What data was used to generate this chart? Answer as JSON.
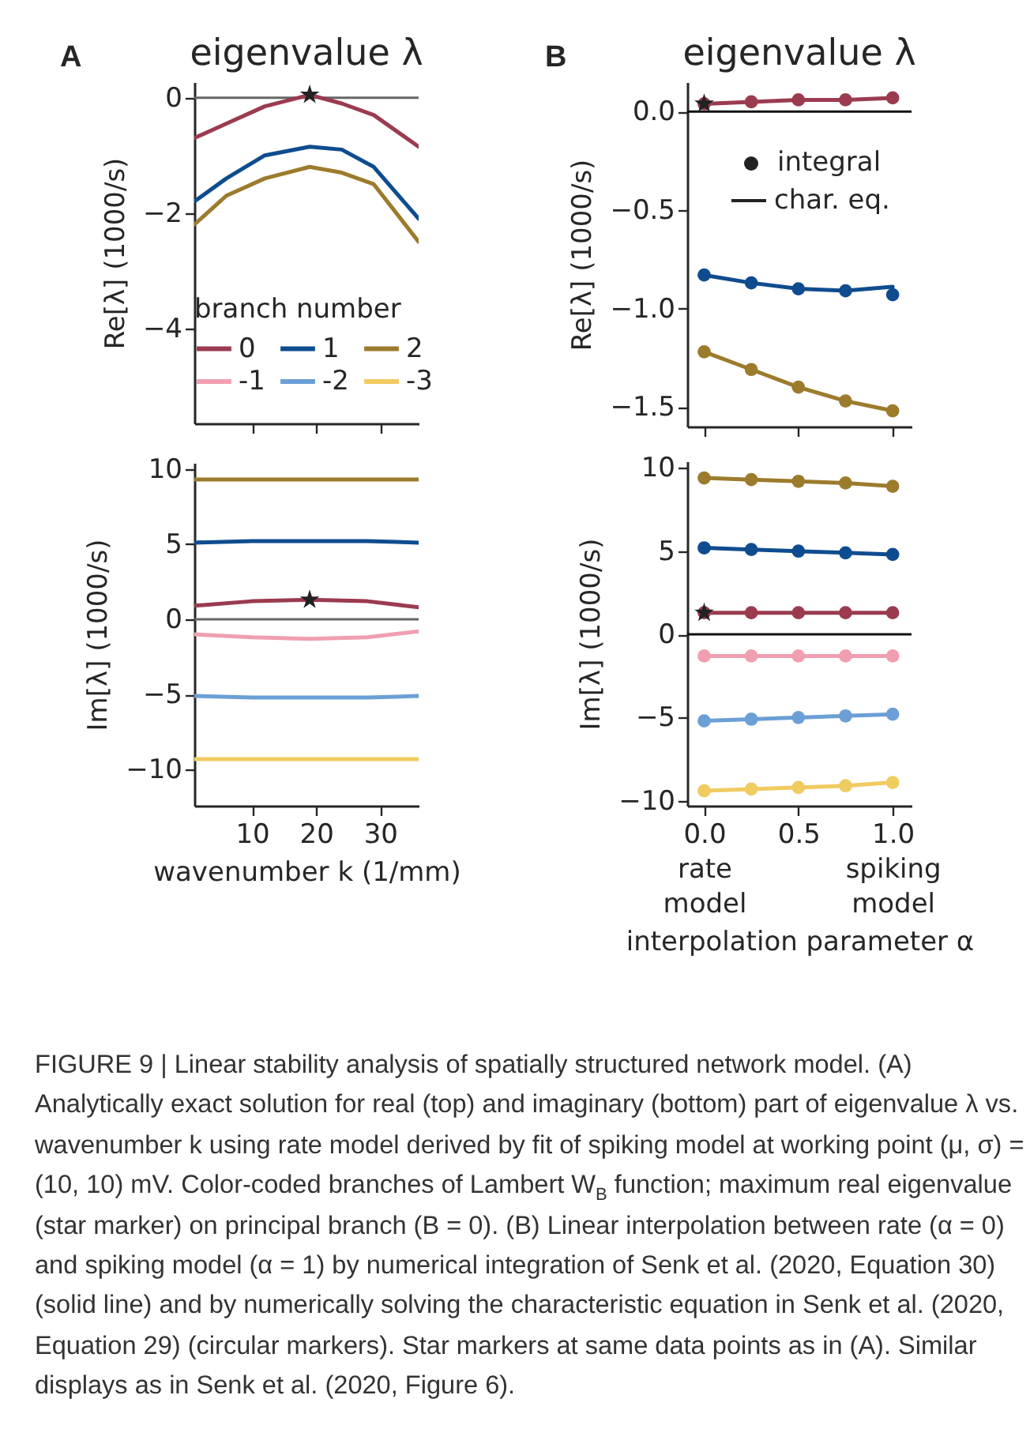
{
  "chart_data": [
    {
      "type": "line",
      "title": "eigenvalue λ",
      "ylabel": "Re[λ] (1000/s)",
      "xlim": [
        1,
        36
      ],
      "xticks": [
        {
          "value": 10,
          "label": null
        },
        {
          "value": 20,
          "label": null
        },
        {
          "value": 30,
          "label": null
        }
      ],
      "ylim": [
        -5.65,
        0.27
      ],
      "yticks": [
        {
          "value": 0,
          "label": "0"
        },
        {
          "value": -2,
          "label": "−2"
        },
        {
          "value": -4,
          "label": "−4"
        }
      ],
      "tick_labels": "y",
      "legend": "bottom",
      "legend_title": "branch number",
      "annotations": [
        "A"
      ],
      "ref_lines": [
        {
          "axis": "y",
          "value": 0,
          "color": "#666666"
        }
      ],
      "x": [
        1,
        6,
        12,
        19,
        24,
        29,
        36
      ],
      "series": [
        {
          "name": "0",
          "color": "#9b3b50",
          "values": [
            -0.7,
            -0.45,
            -0.15,
            0.05,
            -0.1,
            -0.3,
            -0.85
          ]
        },
        {
          "name": "1",
          "color": "#0f4c8f",
          "values": [
            -1.8,
            -1.4,
            -1.0,
            -0.85,
            -0.9,
            -1.2,
            -2.1
          ]
        },
        {
          "name": "2",
          "color": "#9c7b2d",
          "values": [
            -2.2,
            -1.7,
            -1.4,
            -1.2,
            -1.3,
            -1.5,
            -2.5
          ]
        },
        {
          "name": "-1",
          "color": "#f09fb0",
          "values": [
            null,
            null,
            null,
            null,
            null,
            null,
            null
          ]
        },
        {
          "name": "-2",
          "color": "#6b9fd6",
          "values": [
            null,
            null,
            null,
            null,
            null,
            null,
            null
          ]
        },
        {
          "name": "-3",
          "color": "#f0cb60",
          "values": [
            null,
            null,
            null,
            null,
            null,
            null,
            null
          ]
        },
        {
          "type": "scatter",
          "marker": "star",
          "color": "#222222",
          "values": [
            null,
            null,
            null,
            0.05,
            null,
            null,
            null
          ]
        }
      ]
    },
    {
      "type": "line",
      "title": "eigenvalue λ",
      "ylabel": "Re[λ] (1000/s)",
      "xlim": [
        -0.09,
        1.1
      ],
      "xticks": [
        {
          "value": 0,
          "label": null
        },
        {
          "value": 0.5,
          "label": null
        },
        {
          "value": 1,
          "label": null
        }
      ],
      "ylim": [
        -1.6,
        0.15
      ],
      "yticks": [
        {
          "value": 0,
          "label": "0.0"
        },
        {
          "value": -0.5,
          "label": "−0.5"
        },
        {
          "value": -1,
          "label": "−1.0"
        },
        {
          "value": -1.5,
          "label": "−1.5"
        }
      ],
      "tick_labels": "y",
      "annotations": [
        "B",
        "integral",
        "char. eq."
      ],
      "ref_lines": [
        {
          "axis": "y",
          "value": 0,
          "color": "#111111"
        }
      ],
      "x": [
        0,
        0.25,
        0.5,
        0.75,
        1
      ],
      "series": [
        {
          "color": "#9b3b50",
          "values": [
            0.04,
            0.05,
            0.06,
            0.06,
            0.07
          ]
        },
        {
          "color": "#0f4c8f",
          "values": [
            -0.83,
            -0.87,
            -0.9,
            -0.91,
            -0.89
          ]
        },
        {
          "color": "#9c7b2d",
          "values": [
            -1.22,
            -1.31,
            -1.4,
            -1.47,
            -1.52
          ]
        },
        {
          "type": "scatter",
          "marker": "circle",
          "color": "#9b3b50",
          "values": [
            0.04,
            0.05,
            0.06,
            0.06,
            0.07
          ]
        },
        {
          "type": "scatter",
          "marker": "circle",
          "color": "#0f4c8f",
          "values": [
            -0.83,
            -0.87,
            -0.9,
            -0.91,
            -0.93
          ]
        },
        {
          "type": "scatter",
          "marker": "circle",
          "color": "#9c7b2d",
          "values": [
            -1.22,
            -1.31,
            -1.4,
            -1.47,
            -1.52
          ]
        },
        {
          "type": "scatter",
          "marker": "star",
          "color": "#222222",
          "values": [
            0.04,
            null,
            null,
            null,
            null
          ]
        }
      ]
    },
    {
      "type": "line",
      "xlabel": "wavenumber k (1/mm)",
      "ylabel": "Im[λ] (1000/s)",
      "xlim": [
        1,
        36
      ],
      "xticks": [
        10,
        20,
        30
      ],
      "ylim": [
        -12.4,
        10.4
      ],
      "yticks": [
        {
          "value": 10,
          "label": "10"
        },
        {
          "value": 5,
          "label": "5"
        },
        {
          "value": 0,
          "label": "0"
        },
        {
          "value": -5,
          "label": "−5"
        },
        {
          "value": -10,
          "label": "−10"
        }
      ],
      "ref_lines": [
        {
          "axis": "y",
          "value": 0,
          "color": "#666666"
        }
      ],
      "x": [
        1,
        10,
        19,
        28,
        36
      ],
      "series": [
        {
          "color": "#9b3b50",
          "values": [
            0.9,
            1.2,
            1.3,
            1.2,
            0.8
          ]
        },
        {
          "color": "#0f4c8f",
          "values": [
            5.1,
            5.2,
            5.2,
            5.2,
            5.1
          ]
        },
        {
          "color": "#9c7b2d",
          "values": [
            9.3,
            9.3,
            9.3,
            9.3,
            9.3
          ]
        },
        {
          "color": "#f09fb0",
          "values": [
            -1.0,
            -1.2,
            -1.3,
            -1.2,
            -0.8
          ]
        },
        {
          "color": "#6b9fd6",
          "values": [
            -5.1,
            -5.2,
            -5.2,
            -5.2,
            -5.1
          ]
        },
        {
          "color": "#f0cb60",
          "values": [
            -9.3,
            -9.3,
            -9.3,
            -9.3,
            -9.3
          ]
        },
        {
          "type": "scatter",
          "marker": "star",
          "color": "#222222",
          "values": [
            null,
            null,
            1.3,
            null,
            null
          ]
        }
      ]
    },
    {
      "type": "line",
      "xlabel": "interpolation parameter α",
      "ylabel": "Im[λ] (1000/s)",
      "xlim": [
        -0.09,
        1.1
      ],
      "xticks": [
        {
          "value": 0,
          "label": "0.0\nrate\nmodel"
        },
        {
          "value": 0.5,
          "label": "0.5"
        },
        {
          "value": 1,
          "label": "1.0\nspiking\nmodel"
        }
      ],
      "ylim": [
        -10.3,
        10.4
      ],
      "yticks": [
        {
          "value": 10,
          "label": "10"
        },
        {
          "value": 5,
          "label": "5"
        },
        {
          "value": 0,
          "label": "0"
        },
        {
          "value": -5,
          "label": "−5"
        },
        {
          "value": -10,
          "label": "−10"
        }
      ],
      "annotations": [
        "FIGURE 9 | Linear stability analysis of spatially structured network model. (A) Analytically exact solution for real (top) and imaginary (bottom) part of eigenvalue λ vs. wavenumber k using rate model derived by fit of spiking model at working point (μ, σ) = (10, 10) mV. Color-coded branches of Lambert W$_{B}$ function; maximum real eigenvalue (star marker) on principal branch (B = 0). (B) Linear interpolation between rate (α = 0) and spiking model (α = 1) by numerical integration of Senk et al. (2020, Equation 30) (solid line) and by numerically solving the characteristic equation in Senk et al. (2020, Equation 29) (circular markers). Star markers at same data points as in (A). Similar displays as in Senk et al. (2020, Figure 6)."
      ],
      "ref_lines": [
        {
          "axis": "y",
          "value": 0,
          "color": "#111111"
        }
      ],
      "x": [
        0,
        0.25,
        0.5,
        0.75,
        1
      ],
      "series": [
        {
          "color": "#9b3b50",
          "values": [
            1.3,
            1.3,
            1.3,
            1.3,
            1.3
          ]
        },
        {
          "color": "#0f4c8f",
          "values": [
            5.2,
            5.1,
            5.0,
            4.9,
            4.8
          ]
        },
        {
          "color": "#9c7b2d",
          "values": [
            9.4,
            9.3,
            9.2,
            9.1,
            8.9
          ]
        },
        {
          "color": "#f09fb0",
          "values": [
            -1.3,
            -1.3,
            -1.3,
            -1.3,
            -1.3
          ]
        },
        {
          "color": "#6b9fd6",
          "values": [
            -5.2,
            -5.1,
            -5.0,
            -4.9,
            -4.8
          ]
        },
        {
          "color": "#f0cb60",
          "values": [
            -9.4,
            -9.3,
            -9.2,
            -9.1,
            -8.9
          ]
        },
        {
          "type": "scatter",
          "marker": "circle",
          "color": "#9b3b50",
          "values": [
            1.3,
            1.3,
            1.3,
            1.3,
            1.3
          ]
        },
        {
          "type": "scatter",
          "marker": "circle",
          "color": "#0f4c8f",
          "values": [
            5.2,
            5.1,
            5.0,
            4.9,
            4.8
          ]
        },
        {
          "type": "scatter",
          "marker": "circle",
          "color": "#9c7b2d",
          "values": [
            9.4,
            9.3,
            9.2,
            9.1,
            8.9
          ]
        },
        {
          "type": "scatter",
          "marker": "circle",
          "color": "#f09fb0",
          "values": [
            -1.3,
            -1.3,
            -1.3,
            -1.3,
            -1.3
          ]
        },
        {
          "type": "scatter",
          "marker": "circle",
          "color": "#6b9fd6",
          "values": [
            -5.2,
            -5.1,
            -5.0,
            -4.9,
            -4.8
          ]
        },
        {
          "type": "scatter",
          "marker": "circle",
          "color": "#f0cb60",
          "values": [
            -9.4,
            -9.3,
            -9.2,
            -9.1,
            -8.9
          ]
        },
        {
          "type": "scatter",
          "marker": "star",
          "color": "#222222",
          "values": [
            1.3,
            null,
            null,
            null,
            null
          ]
        }
      ]
    }
  ]
}
